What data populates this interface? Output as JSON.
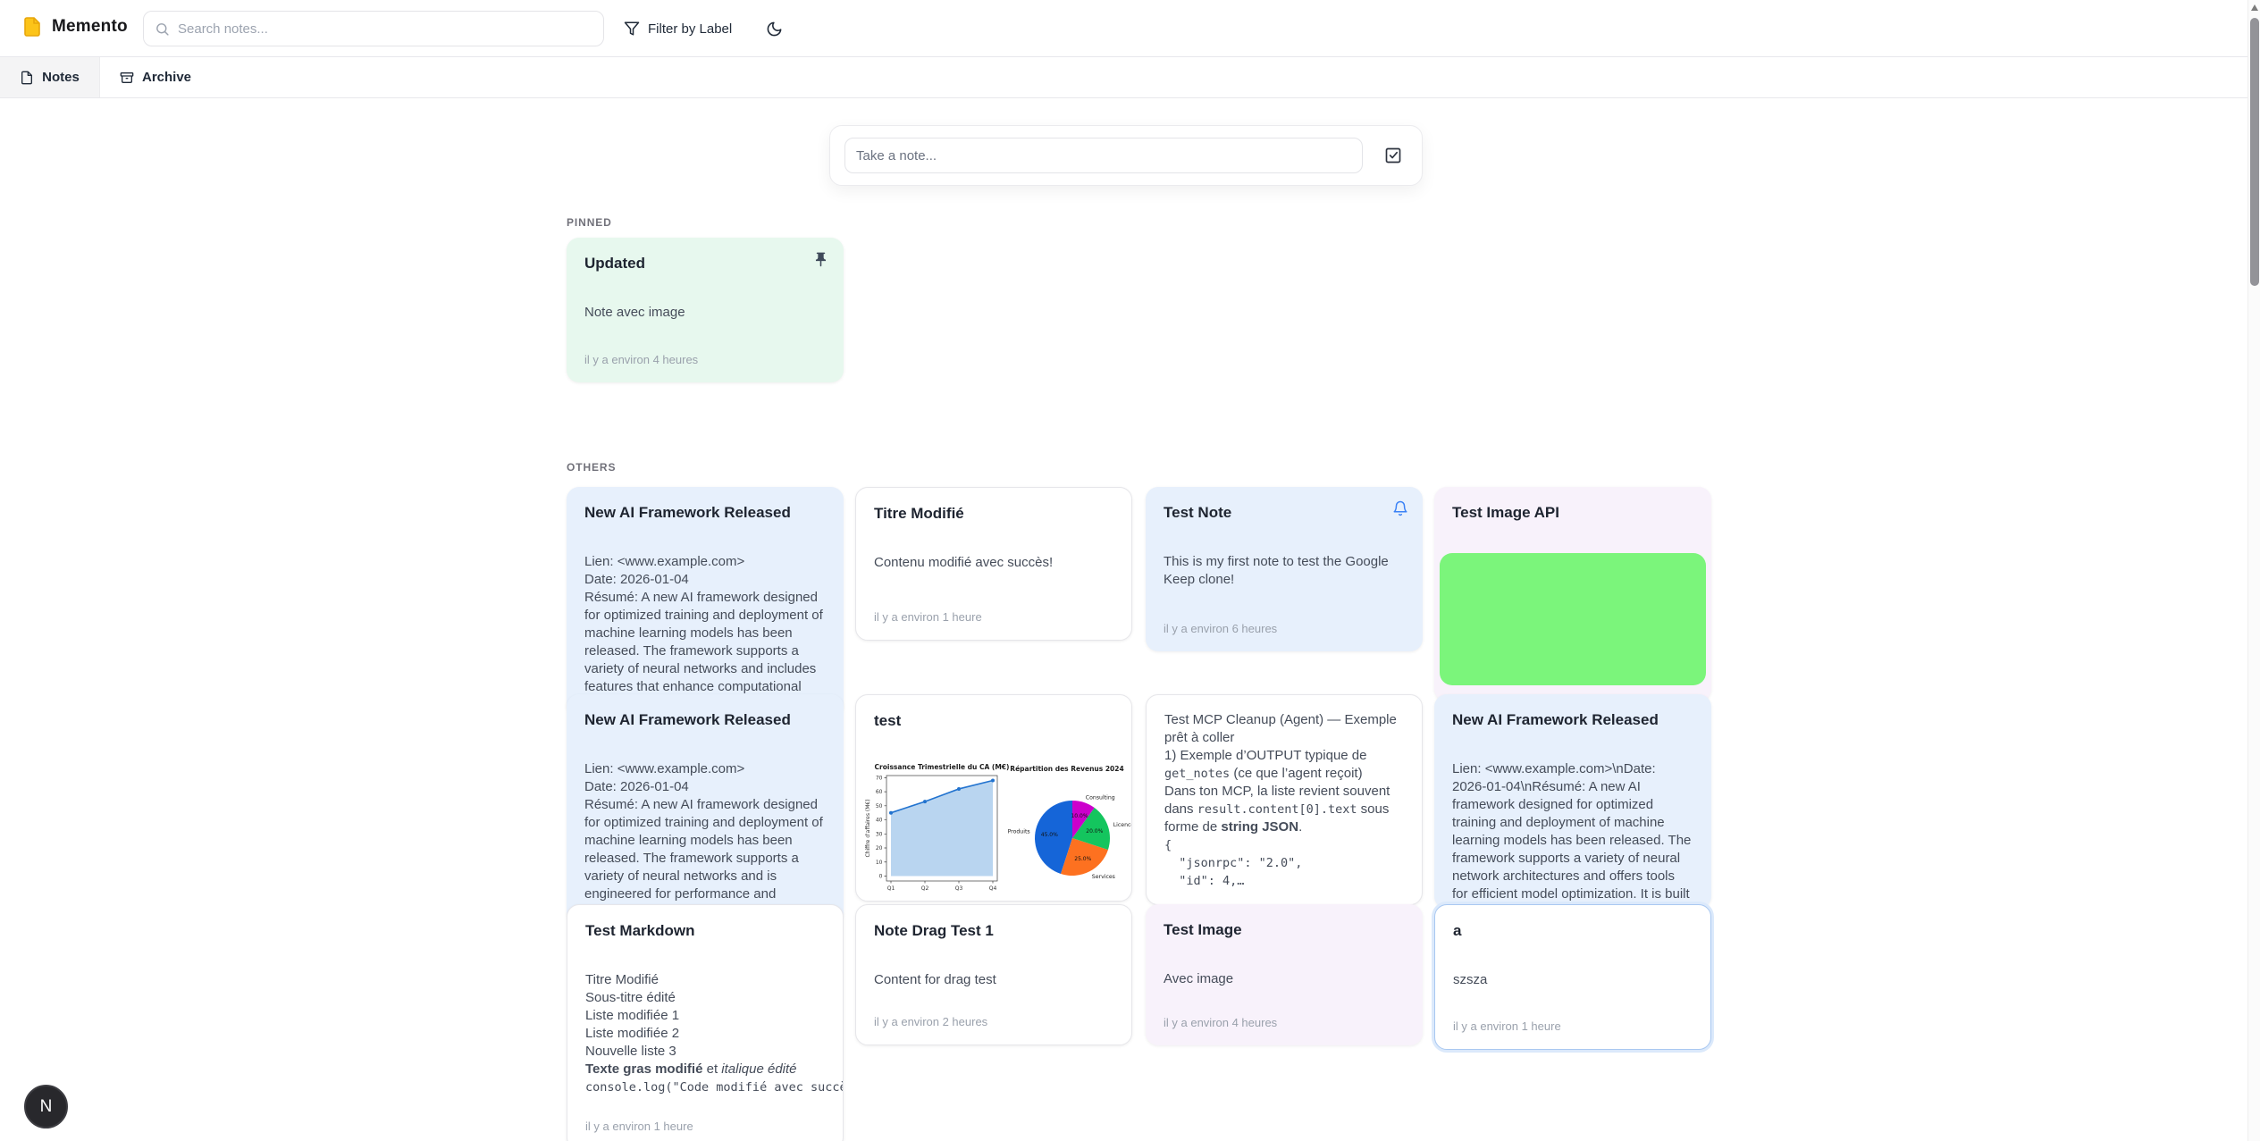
{
  "header": {
    "app_name": "Memento",
    "search_placeholder": "Search notes...",
    "filter_label": "Filter by Label"
  },
  "tabs": {
    "notes": "Notes",
    "archive": "Archive"
  },
  "composer": {
    "placeholder": "Take a note..."
  },
  "sections": {
    "pinned": "PINNED",
    "others": "OTHERS"
  },
  "avatar": {
    "initial": "N"
  },
  "notes": {
    "pinned_note": {
      "title": "Updated",
      "body": "Note avec image",
      "timestamp": "il y a environ 4 heures"
    },
    "naf1": {
      "title": "New AI Framework Released",
      "body": "Lien: <www.example.com>\nDate: 2026-01-04\nRésumé: A new AI framework designed for optimized training and deployment of machine learning models has been released. The framework supports a variety of neural networks and includes features that enhance computational"
    },
    "naf2": {
      "title": "New AI Framework Released",
      "body": "Lien: <www.example.com>\nDate: 2026-01-04\nRésumé: A new AI framework designed for optimized training and deployment of machine learning models has been released. The framework supports a variety of neural networks and is engineered for performance and"
    },
    "markdown": {
      "title": "Test Markdown",
      "rich_body": [
        {
          "t": "Titre Modifié\nSous-titre édité\nListe modifiée 1\nListe modifiée 2\nNouvelle liste 3\n"
        },
        {
          "t": "Texte gras modifié",
          "bold": true
        },
        {
          "t": " et "
        },
        {
          "t": "italique édité",
          "italic": true
        },
        {
          "t": "\n"
        },
        {
          "t": "console.log(\"Code modifié avec succè",
          "code": true
        }
      ],
      "timestamp": "il y a environ 1 heure"
    },
    "titre": {
      "title": "Titre Modifié",
      "body": "Contenu modifié avec succès!",
      "timestamp": "il y a environ 1 heure"
    },
    "test_chart": {
      "title": "test"
    },
    "drag": {
      "title": "Note Drag Test 1",
      "body": "Content for drag test",
      "timestamp": "il y a environ 2 heures"
    },
    "test_note": {
      "title": "Test Note",
      "body": "This is my first note to test the Google Keep clone!",
      "timestamp": "il y a environ 6 heures"
    },
    "mcp": {
      "rich_body": [
        {
          "t": "Test MCP Cleanup (Agent) — Exemple prêt à coller\n1) Exemple d’OUTPUT typique de "
        },
        {
          "t": "get_notes",
          "mono": true
        },
        {
          "t": " (ce que l’agent reçoit)\nDans ton MCP, la liste revient souvent dans "
        },
        {
          "t": "result.content[0].text",
          "mono": true
        },
        {
          "t": " sous forme de "
        },
        {
          "t": "string JSON",
          "bold": true
        },
        {
          "t": ".\n"
        },
        {
          "t": "{\n  \"jsonrpc\": \"2.0\",\n  \"id\": 4,…",
          "mono": true
        }
      ]
    },
    "test_image": {
      "title": "Test Image",
      "body": "Avec image",
      "timestamp": "il y a environ 4 heures"
    },
    "image_api": {
      "title": "Test Image API"
    },
    "naf3": {
      "title": "New AI Framework Released",
      "body": "Lien: <www.example.com>\\nDate: 2026-01-04\\nRésumé: A new AI framework designed for optimized training and deployment of machine learning models has been released. The framework supports a variety of neural network architectures and offers tools for efficient model optimization. It is built to integrate"
    },
    "a_note": {
      "title": "a",
      "body": "szsza",
      "timestamp": "il y a environ 1 heure"
    }
  },
  "chart_data": [
    {
      "type": "area",
      "title": "Croissance Trimestrielle du CA (M€)",
      "categories": [
        "Q1",
        "Q2",
        "Q3",
        "Q4"
      ],
      "values": [
        45,
        53,
        62,
        68
      ],
      "xlabel": "",
      "ylabel": "Chiffre d'affaires (M€)",
      "ylim": [
        -3.5,
        71.5
      ],
      "yticks": [
        0,
        10,
        20,
        30,
        40,
        50,
        60,
        70
      ],
      "grid": false,
      "line_color": "#2273cf",
      "fill_color": "#b9d5f0"
    },
    {
      "type": "pie",
      "title": "Répartition des Revenus 2024",
      "labels": [
        "Produits",
        "Services",
        "Licences",
        "Consulting"
      ],
      "values": [
        45.0,
        25.0,
        20.0,
        10.0
      ],
      "autopct": [
        "45.0%",
        "25.0%",
        "20.0%",
        "10.0%"
      ],
      "colors": [
        "#1565d8",
        "#fd7120",
        "#14c55e",
        "#cc00cc"
      ],
      "startangle": 90,
      "direction": "counterclockwise"
    }
  ],
  "colors": {
    "accent_blue": "#3b82f6",
    "note_blue": "#e7f0fc",
    "note_green": "#e7f8ee",
    "note_lavender": "#f8f2fb",
    "image_green": "#7bf57b",
    "logo_yellow": "#fcc419"
  }
}
